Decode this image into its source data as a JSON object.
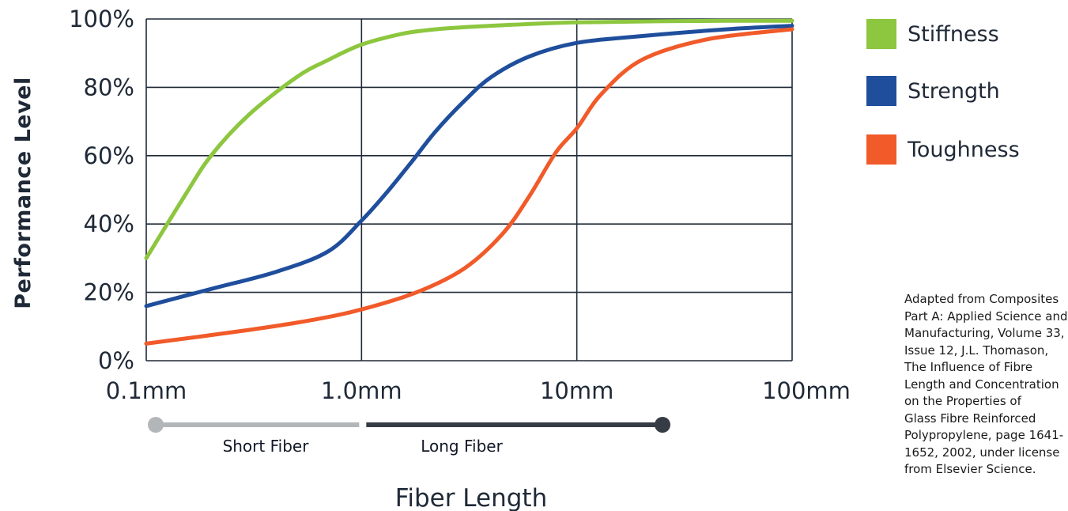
{
  "chart_data": {
    "type": "line",
    "xscale": "log",
    "xlim": [
      0.1,
      100
    ],
    "ylim": [
      0,
      100
    ],
    "xlabel": "Fiber Length",
    "ylabel": "Performance Level",
    "x_ticks": [
      {
        "value": 0.1,
        "label": "0.1mm"
      },
      {
        "value": 1,
        "label": "1.0mm"
      },
      {
        "value": 10,
        "label": "10mm"
      },
      {
        "value": 100,
        "label": "100mm"
      }
    ],
    "y_ticks": [
      {
        "value": 0,
        "label": "0%"
      },
      {
        "value": 20,
        "label": "20%"
      },
      {
        "value": 40,
        "label": "40%"
      },
      {
        "value": 60,
        "label": "60%"
      },
      {
        "value": 80,
        "label": "80%"
      },
      {
        "value": 100,
        "label": "100%"
      }
    ],
    "grid": true,
    "legend_position": "right",
    "series": [
      {
        "name": "Stiffness",
        "color": "#8dc63f",
        "points": [
          [
            0.1,
            30
          ],
          [
            0.15,
            48
          ],
          [
            0.2,
            60
          ],
          [
            0.3,
            72
          ],
          [
            0.5,
            83
          ],
          [
            0.7,
            88
          ],
          [
            1,
            92.5
          ],
          [
            1.5,
            95.5
          ],
          [
            2,
            96.7
          ],
          [
            3,
            97.6
          ],
          [
            5,
            98.3
          ],
          [
            10,
            99
          ],
          [
            30,
            99.4
          ],
          [
            100,
            99.5
          ]
        ]
      },
      {
        "name": "Strength",
        "color": "#1f4e9c",
        "points": [
          [
            0.1,
            16
          ],
          [
            0.2,
            21
          ],
          [
            0.4,
            26
          ],
          [
            0.7,
            32
          ],
          [
            1,
            41
          ],
          [
            1.3,
            49
          ],
          [
            1.7,
            58
          ],
          [
            2.2,
            67
          ],
          [
            3,
            76
          ],
          [
            4,
            83
          ],
          [
            6,
            89
          ],
          [
            10,
            93
          ],
          [
            20,
            95
          ],
          [
            50,
            97
          ],
          [
            100,
            98
          ]
        ]
      },
      {
        "name": "Toughness",
        "color": "#f15a29",
        "points": [
          [
            0.1,
            5
          ],
          [
            0.3,
            9
          ],
          [
            0.6,
            12
          ],
          [
            1,
            15
          ],
          [
            1.8,
            20
          ],
          [
            3,
            27
          ],
          [
            4.5,
            37
          ],
          [
            6,
            48
          ],
          [
            8,
            61
          ],
          [
            10,
            68
          ],
          [
            13,
            78
          ],
          [
            20,
            88
          ],
          [
            40,
            94
          ],
          [
            100,
            97
          ]
        ]
      }
    ],
    "fiber_classes": [
      {
        "label": "Short Fiber",
        "range": [
          0.1,
          1.0
        ],
        "color": "#b3b6b9"
      },
      {
        "label": "Long Fiber",
        "range": [
          1.0,
          25
        ],
        "color": "#363c46"
      }
    ]
  },
  "source_note": {
    "lines": [
      "Adapted from Composites",
      "Part A: Applied Science and",
      "Manufacturing, Volume 33,",
      "Issue 12, J.L. Thomason,",
      "The Influence of Fibre",
      "Length and Concentration",
      "on the Properties of",
      "Glass Fibre Reinforced",
      "Polypropylene, page 1641-",
      "1652, 2002, under license",
      "from Elsevier Science."
    ]
  }
}
